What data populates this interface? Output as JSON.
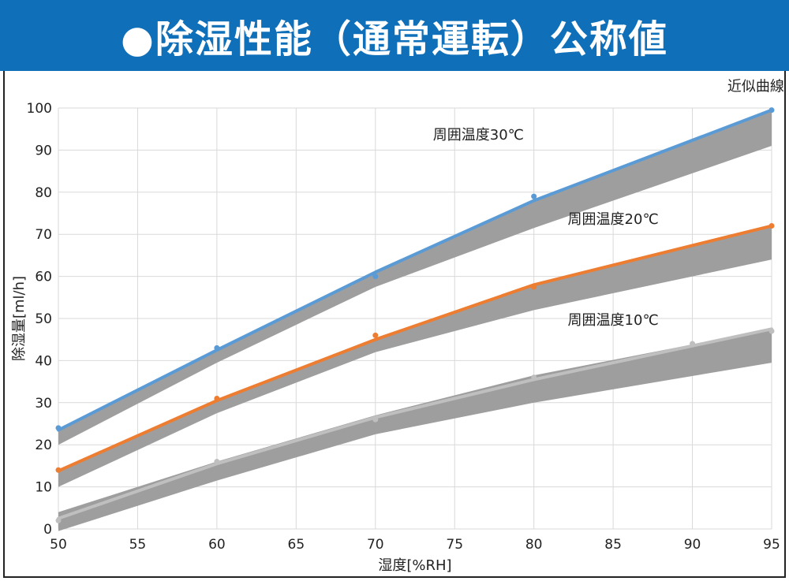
{
  "header": {
    "title": "●除湿性能（通常運転）公称値"
  },
  "chart_data": {
    "type": "line",
    "xlabel": "湿度[%RH]",
    "ylabel": "除湿量[ml/h]",
    "xlim": [
      50,
      95
    ],
    "ylim": [
      0,
      100
    ],
    "xticks": [
      50,
      55,
      60,
      65,
      70,
      75,
      80,
      85,
      90,
      95
    ],
    "yticks": [
      0,
      10,
      20,
      30,
      40,
      50,
      60,
      70,
      80,
      90,
      100
    ],
    "grid": true,
    "annotations": [
      {
        "text": "近似曲線",
        "x": 94,
        "y": 104
      },
      {
        "text": "周囲温度30℃",
        "x": 76.5,
        "y": 92.5
      },
      {
        "text": "周囲温度20℃",
        "x": 85,
        "y": 72.5
      },
      {
        "text": "周囲温度10℃",
        "x": 85,
        "y": 48.5
      }
    ],
    "series": [
      {
        "color": "#5b9bd5",
        "points": [
          [
            50,
            24
          ],
          [
            60,
            43
          ],
          [
            70,
            60
          ],
          [
            80,
            79
          ],
          [
            95,
            99.5
          ]
        ],
        "curve": [
          [
            50,
            23.5
          ],
          [
            60,
            42.5
          ],
          [
            70,
            61
          ],
          [
            80,
            78
          ],
          [
            95,
            99.5
          ]
        ],
        "band_upper": [
          [
            50,
            23.5
          ],
          [
            60,
            42.5
          ],
          [
            70,
            61
          ],
          [
            80,
            78
          ],
          [
            95,
            99.5
          ]
        ],
        "band_lower": [
          [
            50,
            20
          ],
          [
            60,
            39.5
          ],
          [
            70,
            57.5
          ],
          [
            80,
            71.5
          ],
          [
            95,
            91
          ]
        ]
      },
      {
        "color": "#ed7d31",
        "points": [
          [
            50,
            14
          ],
          [
            60,
            31
          ],
          [
            70,
            46
          ],
          [
            80,
            57.5
          ],
          [
            95,
            72
          ]
        ],
        "curve": [
          [
            50,
            13.8
          ],
          [
            60,
            30.5
          ],
          [
            70,
            45
          ],
          [
            80,
            58
          ],
          [
            95,
            72
          ]
        ],
        "band_upper": [
          [
            50,
            13.8
          ],
          [
            60,
            30.5
          ],
          [
            70,
            45
          ],
          [
            80,
            58
          ],
          [
            95,
            72
          ]
        ],
        "band_lower": [
          [
            50,
            10
          ],
          [
            60,
            27.5
          ],
          [
            70,
            42
          ],
          [
            80,
            52
          ],
          [
            95,
            64
          ]
        ]
      },
      {
        "color": "#bfbfbf",
        "points": [
          [
            50,
            2
          ],
          [
            60,
            16
          ],
          [
            70,
            26
          ],
          [
            80,
            36
          ],
          [
            90,
            44
          ],
          [
            95,
            47
          ]
        ],
        "curve": [
          [
            50,
            2.5
          ],
          [
            60,
            15.5
          ],
          [
            70,
            26.5
          ],
          [
            80,
            35.5
          ],
          [
            95,
            47.5
          ]
        ],
        "band_upper": [
          [
            50,
            4
          ],
          [
            60,
            16
          ],
          [
            70,
            27
          ],
          [
            80,
            36.5
          ],
          [
            95,
            47.5
          ]
        ],
        "band_lower": [
          [
            50,
            -0.5
          ],
          [
            60,
            11.5
          ],
          [
            70,
            22.5
          ],
          [
            80,
            30
          ],
          [
            95,
            39.5
          ]
        ]
      }
    ]
  }
}
